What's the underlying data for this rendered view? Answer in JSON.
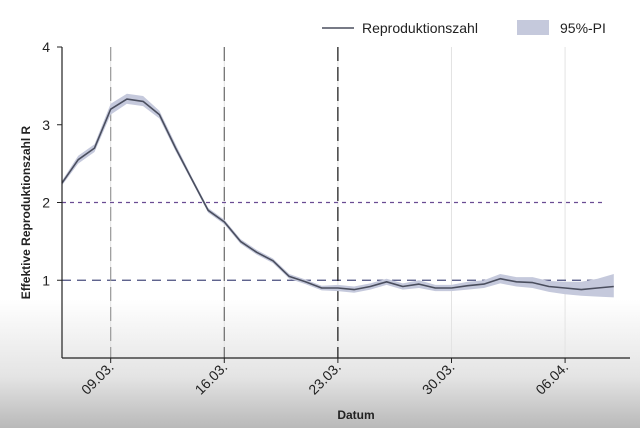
{
  "chart_data": {
    "type": "line",
    "xlabel": "Datum",
    "ylabel": "Effektive Reproduktionszahl R",
    "ylim": [
      0,
      4
    ],
    "yticks": [
      1,
      2,
      3,
      4
    ],
    "xlim": [
      "2020-03-06",
      "2020-04-10"
    ],
    "xticks": [
      {
        "date": "2020-03-09",
        "label": "09.03."
      },
      {
        "date": "2020-03-16",
        "label": "16.03."
      },
      {
        "date": "2020-03-23",
        "label": "23.03."
      },
      {
        "date": "2020-03-30",
        "label": "30.03."
      },
      {
        "date": "2020-04-06",
        "label": "06.04."
      }
    ],
    "grid": "vertical",
    "legend_position": "top-right",
    "series": [
      {
        "name": "Reproduktionszahl",
        "color": "#4a4e5e",
        "x": [
          "2020-03-06",
          "2020-03-07",
          "2020-03-08",
          "2020-03-09",
          "2020-03-10",
          "2020-03-11",
          "2020-03-12",
          "2020-03-13",
          "2020-03-14",
          "2020-03-15",
          "2020-03-16",
          "2020-03-17",
          "2020-03-18",
          "2020-03-19",
          "2020-03-20",
          "2020-03-21",
          "2020-03-22",
          "2020-03-23",
          "2020-03-24",
          "2020-03-25",
          "2020-03-26",
          "2020-03-27",
          "2020-03-28",
          "2020-03-29",
          "2020-03-30",
          "2020-03-31",
          "2020-04-01",
          "2020-04-02",
          "2020-04-03",
          "2020-04-04",
          "2020-04-05",
          "2020-04-06",
          "2020-04-07",
          "2020-04-08",
          "2020-04-09"
        ],
        "y": [
          2.25,
          2.55,
          2.7,
          3.2,
          3.33,
          3.3,
          3.13,
          2.7,
          2.3,
          1.9,
          1.75,
          1.5,
          1.36,
          1.25,
          1.05,
          0.98,
          0.9,
          0.9,
          0.88,
          0.92,
          0.98,
          0.92,
          0.95,
          0.9,
          0.9,
          0.93,
          0.95,
          1.02,
          0.98,
          0.97,
          0.92,
          0.9,
          0.88,
          0.9,
          0.92
        ]
      }
    ],
    "interval": {
      "name": "95%-PI",
      "color": "#c5c9dc",
      "lower": [
        2.22,
        2.5,
        2.65,
        3.13,
        3.27,
        3.24,
        3.08,
        2.66,
        2.27,
        1.87,
        1.72,
        1.47,
        1.33,
        1.22,
        1.02,
        0.95,
        0.87,
        0.86,
        0.84,
        0.88,
        0.94,
        0.88,
        0.9,
        0.86,
        0.86,
        0.88,
        0.9,
        0.96,
        0.92,
        0.9,
        0.85,
        0.82,
        0.8,
        0.79,
        0.78
      ],
      "upper": [
        2.28,
        2.6,
        2.75,
        3.27,
        3.4,
        3.37,
        3.18,
        2.75,
        2.33,
        1.93,
        1.78,
        1.53,
        1.39,
        1.28,
        1.08,
        1.01,
        0.93,
        0.94,
        0.92,
        0.96,
        1.02,
        0.96,
        1.0,
        0.94,
        0.94,
        0.98,
        1.0,
        1.08,
        1.04,
        1.04,
        0.99,
        0.98,
        0.98,
        1.02,
        1.08
      ]
    },
    "reference_lines": [
      {
        "axis": "y",
        "value": 2,
        "color": "#6a4c93",
        "style": "dashed"
      },
      {
        "axis": "y",
        "value": 1,
        "color": "#4a4e7e",
        "style": "dashed"
      },
      {
        "axis": "x",
        "value": "2020-03-09",
        "color": "#9a9a9a",
        "style": "dashed"
      },
      {
        "axis": "x",
        "value": "2020-03-16",
        "color": "#6a6a6a",
        "style": "dashed"
      },
      {
        "axis": "x",
        "value": "2020-03-23",
        "color": "#111111",
        "style": "dashed"
      }
    ]
  }
}
